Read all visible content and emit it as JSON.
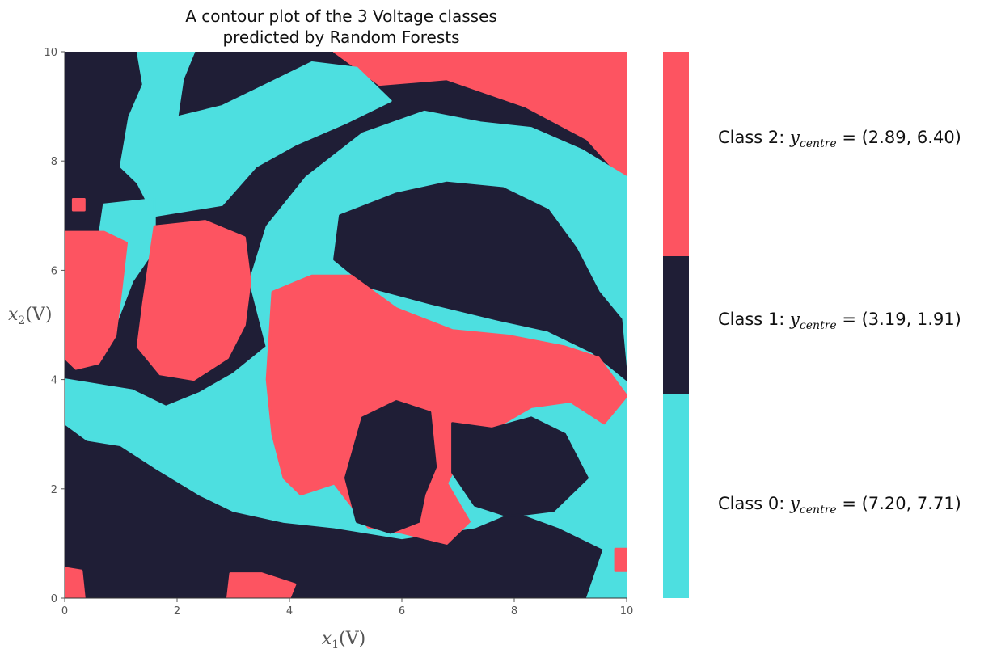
{
  "chart_data": {
    "type": "heatmap",
    "subtype": "decision-region contour plot",
    "title_lines": [
      "A contour plot of the 3 Voltage classes",
      "predicted by Random Forests"
    ],
    "xlabel": {
      "var": "x",
      "sub": "1",
      "unit": "(V)"
    },
    "ylabel": {
      "var": "x",
      "sub": "2",
      "unit": "(V)"
    },
    "xlim": [
      0,
      10
    ],
    "ylim": [
      0,
      10
    ],
    "xticks": [
      "0",
      "2",
      "4",
      "6",
      "8",
      "10"
    ],
    "yticks": [
      "0",
      "2",
      "4",
      "6",
      "8",
      "10"
    ],
    "grid": false,
    "colors": {
      "class0": "#4ddfe0",
      "class1": "#1f1e36",
      "class2": "#fd5461"
    },
    "classes": [
      {
        "name": "Class 0",
        "color": "#4ddfe0",
        "label_prefix": "Class 0: ",
        "var": "y",
        "sub": "centre",
        "centre_text": " = (7.20, 7.71)",
        "centre": [
          7.2,
          7.71
        ]
      },
      {
        "name": "Class 1",
        "color": "#1f1e36",
        "label_prefix": "Class 1: ",
        "var": "y",
        "sub": "centre",
        "centre_text": " = (3.19, 1.91)",
        "centre": [
          3.19,
          1.91
        ]
      },
      {
        "name": "Class 2",
        "color": "#fd5461",
        "label_prefix": "Class 2: ",
        "var": "y",
        "sub": "centre",
        "centre_text": " = (2.89, 6.40)",
        "centre": [
          2.89,
          6.4
        ]
      }
    ],
    "background_class": 1,
    "regions": [
      {
        "cls": 2,
        "poly": [
          [
            4.8,
            10
          ],
          [
            10,
            10
          ],
          [
            10,
            7.6
          ],
          [
            9.3,
            8.4
          ],
          [
            8.2,
            9.0
          ],
          [
            6.8,
            9.5
          ],
          [
            5.6,
            9.4
          ]
        ]
      },
      {
        "cls": 0,
        "poly": [
          [
            1.3,
            10
          ],
          [
            2.3,
            10
          ],
          [
            2.1,
            9.5
          ],
          [
            2.0,
            8.8
          ],
          [
            2.8,
            9.0
          ],
          [
            3.6,
            9.4
          ],
          [
            4.4,
            9.8
          ],
          [
            5.2,
            9.7
          ],
          [
            5.8,
            9.1
          ],
          [
            5.0,
            8.7
          ],
          [
            4.1,
            8.3
          ],
          [
            3.4,
            7.9
          ],
          [
            2.8,
            7.2
          ],
          [
            2.2,
            7.1
          ],
          [
            1.6,
            7.0
          ],
          [
            1.3,
            7.6
          ],
          [
            1.0,
            7.9
          ],
          [
            1.15,
            8.8
          ],
          [
            1.4,
            9.4
          ]
        ]
      },
      {
        "cls": 0,
        "poly": [
          [
            0.7,
            7.2
          ],
          [
            1.6,
            7.3
          ],
          [
            1.6,
            6.4
          ],
          [
            1.2,
            5.8
          ],
          [
            0.9,
            5.0
          ],
          [
            0.4,
            4.9
          ],
          [
            0.3,
            5.8
          ],
          [
            0.6,
            6.5
          ]
        ]
      },
      {
        "cls": 0,
        "poly": [
          [
            0,
            4.0
          ],
          [
            1.2,
            3.8
          ],
          [
            1.8,
            3.5
          ],
          [
            2.4,
            3.75
          ],
          [
            3.0,
            4.1
          ],
          [
            3.6,
            4.6
          ],
          [
            3.3,
            5.8
          ],
          [
            3.6,
            6.8
          ],
          [
            4.3,
            7.7
          ],
          [
            5.3,
            8.5
          ],
          [
            6.4,
            8.9
          ],
          [
            7.4,
            8.7
          ],
          [
            8.3,
            8.6
          ],
          [
            9.2,
            8.2
          ],
          [
            10,
            7.7
          ],
          [
            10,
            0
          ],
          [
            9.3,
            0
          ],
          [
            9.6,
            0.9
          ],
          [
            8.8,
            1.3
          ],
          [
            8.0,
            1.6
          ],
          [
            7.3,
            1.3
          ],
          [
            6.0,
            1.1
          ],
          [
            4.8,
            1.3
          ],
          [
            3.9,
            1.4
          ],
          [
            3.0,
            1.6
          ],
          [
            2.4,
            1.9
          ],
          [
            1.6,
            2.4
          ],
          [
            1.0,
            2.8
          ],
          [
            0.4,
            2.9
          ],
          [
            0,
            3.2
          ]
        ]
      },
      {
        "cls": 1,
        "poly": [
          [
            4.9,
            7.0
          ],
          [
            5.9,
            7.4
          ],
          [
            6.8,
            7.6
          ],
          [
            7.8,
            7.5
          ],
          [
            8.6,
            7.1
          ],
          [
            9.1,
            6.4
          ],
          [
            9.5,
            5.6
          ],
          [
            9.9,
            5.1
          ],
          [
            10,
            4.0
          ],
          [
            9.4,
            4.5
          ],
          [
            8.6,
            4.9
          ],
          [
            7.7,
            5.1
          ],
          [
            6.5,
            5.4
          ],
          [
            5.4,
            5.7
          ],
          [
            4.8,
            6.2
          ]
        ]
      },
      {
        "cls": 2,
        "poly": [
          [
            3.7,
            5.6
          ],
          [
            4.4,
            5.9
          ],
          [
            5.1,
            5.9
          ],
          [
            5.9,
            5.3
          ],
          [
            6.9,
            4.9
          ],
          [
            7.9,
            4.8
          ],
          [
            8.9,
            4.6
          ],
          [
            9.5,
            4.4
          ],
          [
            10,
            3.7
          ],
          [
            9.6,
            3.2
          ],
          [
            9.0,
            3.6
          ],
          [
            8.3,
            3.5
          ],
          [
            7.8,
            3.2
          ],
          [
            7.2,
            2.9
          ],
          [
            6.8,
            2.1
          ],
          [
            7.2,
            1.4
          ],
          [
            6.8,
            1.0
          ],
          [
            6.0,
            1.2
          ],
          [
            5.4,
            1.3
          ],
          [
            4.8,
            2.1
          ],
          [
            4.2,
            1.9
          ],
          [
            3.9,
            2.2
          ],
          [
            3.7,
            3.0
          ],
          [
            3.6,
            4.0
          ]
        ]
      },
      {
        "cls": 1,
        "poly": [
          [
            5.3,
            3.3
          ],
          [
            5.9,
            3.6
          ],
          [
            6.5,
            3.4
          ],
          [
            6.6,
            2.4
          ],
          [
            6.4,
            1.9
          ],
          [
            6.3,
            1.4
          ],
          [
            5.8,
            1.2
          ],
          [
            5.2,
            1.4
          ],
          [
            5.0,
            2.2
          ]
        ]
      },
      {
        "cls": 1,
        "poly": [
          [
            6.9,
            3.2
          ],
          [
            7.6,
            3.1
          ],
          [
            8.3,
            3.3
          ],
          [
            8.9,
            3.0
          ],
          [
            9.3,
            2.2
          ],
          [
            8.7,
            1.6
          ],
          [
            7.9,
            1.5
          ],
          [
            7.3,
            1.7
          ],
          [
            6.9,
            2.3
          ]
        ]
      },
      {
        "cls": 2,
        "poly": [
          [
            0,
            6.7
          ],
          [
            0.7,
            6.7
          ],
          [
            1.1,
            6.5
          ],
          [
            1.0,
            5.6
          ],
          [
            0.9,
            4.8
          ],
          [
            0.6,
            4.3
          ],
          [
            0.2,
            4.2
          ],
          [
            0,
            4.4
          ]
        ]
      },
      {
        "cls": 2,
        "poly": [
          [
            1.6,
            6.8
          ],
          [
            2.5,
            6.9
          ],
          [
            3.2,
            6.6
          ],
          [
            3.3,
            5.8
          ],
          [
            3.2,
            5.0
          ],
          [
            2.9,
            4.4
          ],
          [
            2.3,
            4.0
          ],
          [
            1.7,
            4.1
          ],
          [
            1.3,
            4.6
          ],
          [
            1.4,
            5.4
          ],
          [
            1.5,
            6.1
          ]
        ]
      },
      {
        "cls": 2,
        "poly": [
          [
            2.9,
            0
          ],
          [
            4.0,
            0
          ],
          [
            4.1,
            0.25
          ],
          [
            3.5,
            0.45
          ],
          [
            2.95,
            0.45
          ]
        ]
      },
      {
        "cls": 2,
        "poly": [
          [
            0,
            0
          ],
          [
            0.35,
            0
          ],
          [
            0.3,
            0.5
          ],
          [
            0,
            0.55
          ]
        ]
      },
      {
        "cls": 2,
        "poly": [
          [
            0.15,
            7.3
          ],
          [
            0.35,
            7.3
          ],
          [
            0.35,
            7.1
          ],
          [
            0.15,
            7.1
          ]
        ]
      },
      {
        "cls": 2,
        "poly": [
          [
            9.8,
            0.9
          ],
          [
            10,
            0.9
          ],
          [
            10,
            0.5
          ],
          [
            9.8,
            0.5
          ]
        ]
      }
    ]
  }
}
